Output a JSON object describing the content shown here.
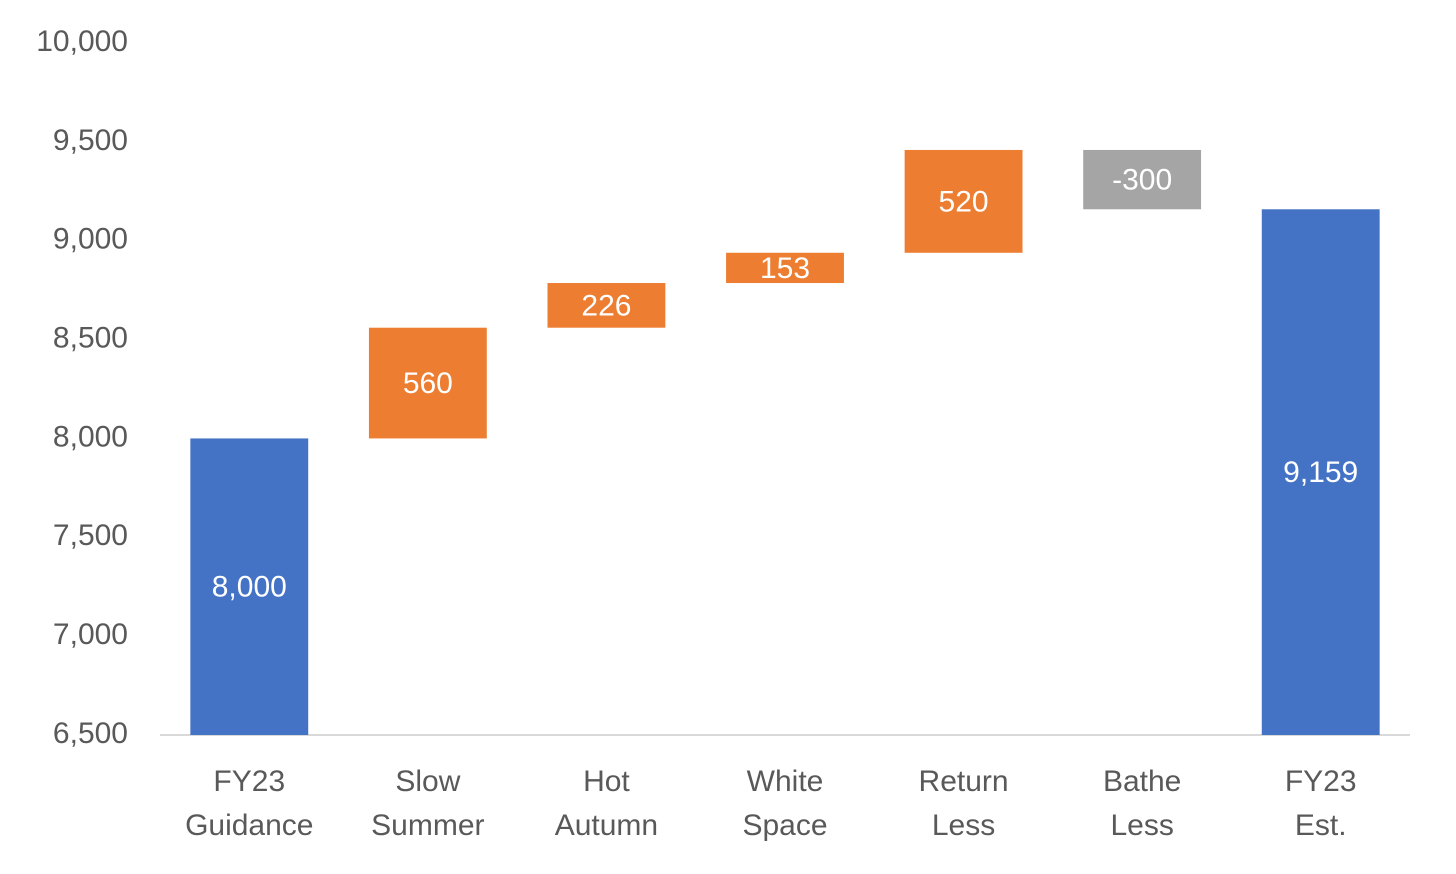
{
  "chart_data": {
    "type": "waterfall",
    "categories": [
      [
        "FY23",
        "Guidance"
      ],
      [
        "Slow",
        "Summer"
      ],
      [
        "Hot",
        "Autumn"
      ],
      [
        "White",
        "Space"
      ],
      [
        "Return",
        "Less"
      ],
      [
        "Bathe",
        "Less"
      ],
      [
        "FY23",
        "Est."
      ]
    ],
    "values": [
      8000,
      560,
      226,
      153,
      520,
      -300,
      9159
    ],
    "value_labels": [
      "8,000",
      "560",
      "226",
      "153",
      "520",
      "-300",
      "9,159"
    ],
    "measure": [
      "total",
      "relative",
      "relative",
      "relative",
      "relative",
      "relative",
      "total"
    ],
    "colors": {
      "total": "#4472c4",
      "increase": "#ed7d31",
      "decrease": "#a5a5a5"
    },
    "ylim": [
      6500,
      10000
    ],
    "yticks": [
      {
        "value": 6500,
        "label": "6,500"
      },
      {
        "value": 7000,
        "label": "7,000"
      },
      {
        "value": 7500,
        "label": "7,500"
      },
      {
        "value": 8000,
        "label": "8,000"
      },
      {
        "value": 8500,
        "label": "8,500"
      },
      {
        "value": 9000,
        "label": "9,000"
      },
      {
        "value": 9500,
        "label": "9,500"
      },
      {
        "value": 10000,
        "label": "10,000"
      }
    ],
    "grid": false
  }
}
